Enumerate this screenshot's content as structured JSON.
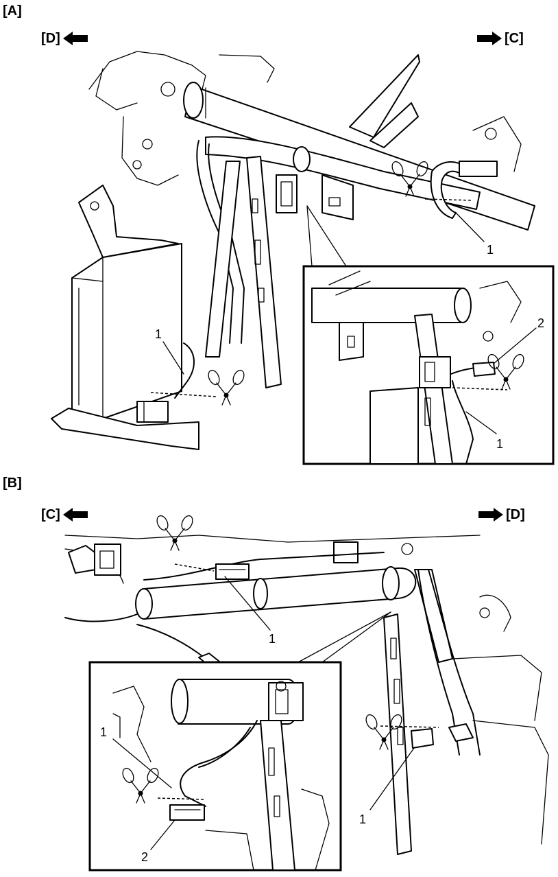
{
  "sections": {
    "a": {
      "label": "[A]",
      "left_direction": "[D]",
      "right_direction": "[C]"
    },
    "b": {
      "label": "[B]",
      "left_direction": "[C]",
      "right_direction": "[D]"
    }
  },
  "callouts": {
    "a_main_1_top": "1",
    "a_main_1_left": "1",
    "a_inset_1": "1",
    "a_inset_2": "2",
    "b_main_1_top": "1",
    "b_main_1_right": "1",
    "b_inset_1": "1",
    "b_inset_2": "2"
  },
  "icons": {
    "direction_left": "arrow-left-icon",
    "direction_right": "arrow-right-icon",
    "cut_point": "scissors-icon"
  }
}
